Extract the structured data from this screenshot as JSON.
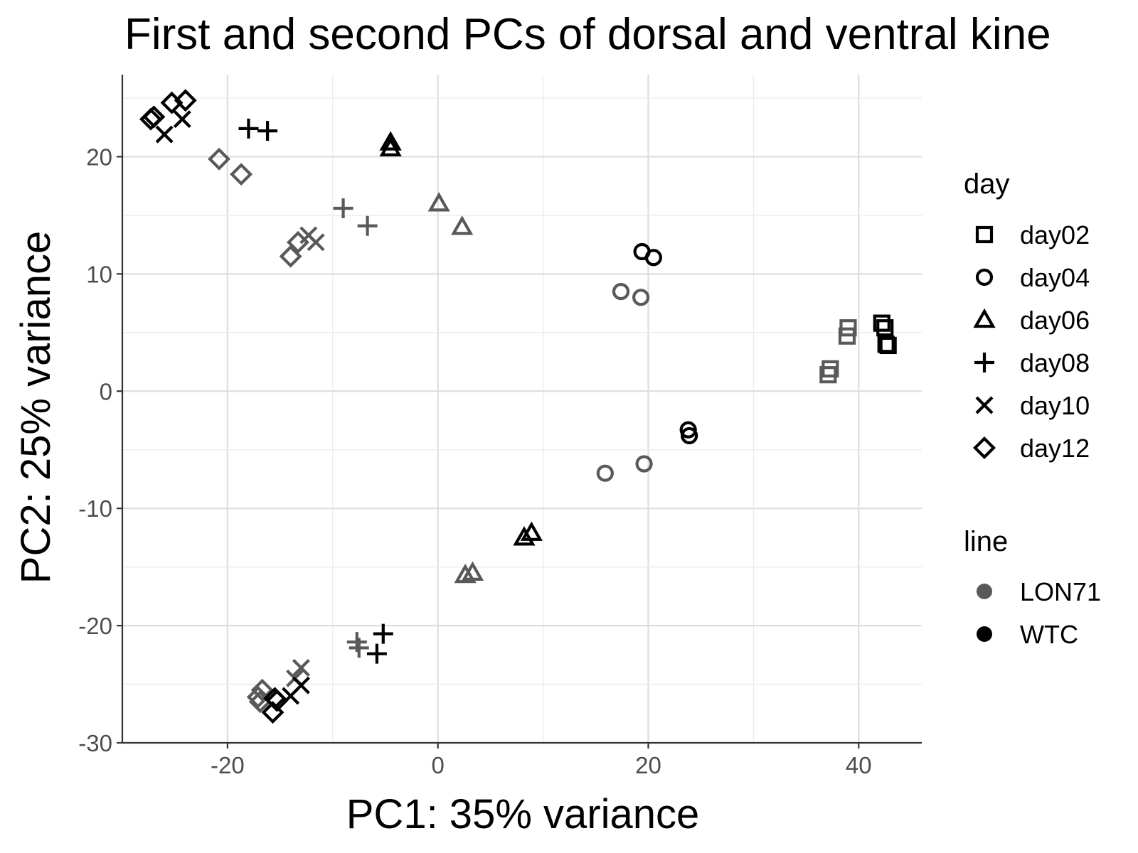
{
  "chart_data": {
    "type": "scatter",
    "title": "First and second PCs of dorsal and ventral kine",
    "xlabel": "PC1: 35% variance",
    "ylabel": "PC2: 25% variance",
    "xlim": [
      -30,
      46
    ],
    "ylim": [
      -30,
      27
    ],
    "x_ticks": [
      -20,
      0,
      20,
      40
    ],
    "y_ticks": [
      -30,
      -20,
      -10,
      0,
      10,
      20
    ],
    "x_tick_labels": [
      "-20",
      "0",
      "20",
      "40"
    ],
    "y_tick_labels": [
      "-30",
      "-20",
      "-10",
      "0",
      "10",
      "20"
    ],
    "grid": true,
    "legend_placement": "right",
    "legends": [
      {
        "title": "day",
        "items": [
          {
            "label": "day02",
            "shape": "square"
          },
          {
            "label": "day04",
            "shape": "circle"
          },
          {
            "label": "day06",
            "shape": "triangle"
          },
          {
            "label": "day08",
            "shape": "plus"
          },
          {
            "label": "day10",
            "shape": "cross"
          },
          {
            "label": "day12",
            "shape": "diamond"
          }
        ]
      },
      {
        "title": "line",
        "items": [
          {
            "label": "LON71",
            "color": "#595959"
          },
          {
            "label": "WTC",
            "color": "#000000"
          }
        ]
      }
    ],
    "colors": {
      "LON71": "#595959",
      "WTC": "#000000"
    },
    "points": [
      {
        "x": 37.1,
        "y": 1.4,
        "day": "day02",
        "line": "LON71"
      },
      {
        "x": 37.3,
        "y": 1.9,
        "day": "day02",
        "line": "LON71"
      },
      {
        "x": 38.9,
        "y": 4.7,
        "day": "day02",
        "line": "LON71"
      },
      {
        "x": 39.0,
        "y": 5.4,
        "day": "day02",
        "line": "LON71"
      },
      {
        "x": 42.2,
        "y": 5.8,
        "day": "day02",
        "line": "WTC"
      },
      {
        "x": 42.5,
        "y": 5.4,
        "day": "day02",
        "line": "WTC"
      },
      {
        "x": 42.6,
        "y": 4.0,
        "day": "day02",
        "line": "WTC"
      },
      {
        "x": 42.8,
        "y": 3.9,
        "day": "day02",
        "line": "WTC"
      },
      {
        "x": 17.4,
        "y": 8.5,
        "day": "day04",
        "line": "LON71"
      },
      {
        "x": 19.3,
        "y": 8.0,
        "day": "day04",
        "line": "LON71"
      },
      {
        "x": 15.9,
        "y": -7.0,
        "day": "day04",
        "line": "LON71"
      },
      {
        "x": 19.6,
        "y": -6.2,
        "day": "day04",
        "line": "LON71"
      },
      {
        "x": 19.4,
        "y": 11.9,
        "day": "day04",
        "line": "WTC"
      },
      {
        "x": 20.5,
        "y": 11.4,
        "day": "day04",
        "line": "WTC"
      },
      {
        "x": 23.8,
        "y": -3.3,
        "day": "day04",
        "line": "WTC"
      },
      {
        "x": 23.9,
        "y": -3.8,
        "day": "day04",
        "line": "WTC"
      },
      {
        "x": 0.1,
        "y": 16.0,
        "day": "day06",
        "line": "LON71"
      },
      {
        "x": 2.3,
        "y": 14.0,
        "day": "day06",
        "line": "LON71"
      },
      {
        "x": 2.6,
        "y": -15.7,
        "day": "day06",
        "line": "LON71"
      },
      {
        "x": 3.3,
        "y": -15.5,
        "day": "day06",
        "line": "LON71"
      },
      {
        "x": -4.5,
        "y": 21.2,
        "day": "day06",
        "line": "WTC"
      },
      {
        "x": -4.5,
        "y": 20.7,
        "day": "day06",
        "line": "WTC"
      },
      {
        "x": 8.2,
        "y": -12.5,
        "day": "day06",
        "line": "WTC"
      },
      {
        "x": 8.9,
        "y": -12.1,
        "day": "day06",
        "line": "WTC"
      },
      {
        "x": -9.0,
        "y": 15.6,
        "day": "day08",
        "line": "LON71"
      },
      {
        "x": -6.7,
        "y": 14.1,
        "day": "day08",
        "line": "LON71"
      },
      {
        "x": -7.7,
        "y": -21.4,
        "day": "day08",
        "line": "LON71"
      },
      {
        "x": -7.5,
        "y": -21.9,
        "day": "day08",
        "line": "LON71"
      },
      {
        "x": -18.0,
        "y": 22.4,
        "day": "day08",
        "line": "WTC"
      },
      {
        "x": -16.2,
        "y": 22.2,
        "day": "day08",
        "line": "WTC"
      },
      {
        "x": -5.2,
        "y": -20.7,
        "day": "day08",
        "line": "WTC"
      },
      {
        "x": -5.8,
        "y": -22.4,
        "day": "day08",
        "line": "WTC"
      },
      {
        "x": -12.3,
        "y": 13.3,
        "day": "day10",
        "line": "LON71"
      },
      {
        "x": -11.6,
        "y": 12.7,
        "day": "day10",
        "line": "LON71"
      },
      {
        "x": -13.0,
        "y": -23.6,
        "day": "day10",
        "line": "LON71"
      },
      {
        "x": -13.6,
        "y": -24.5,
        "day": "day10",
        "line": "LON71"
      },
      {
        "x": -26.0,
        "y": 21.9,
        "day": "day10",
        "line": "WTC"
      },
      {
        "x": -24.3,
        "y": 23.2,
        "day": "day10",
        "line": "WTC"
      },
      {
        "x": -14.0,
        "y": -26.0,
        "day": "day10",
        "line": "WTC"
      },
      {
        "x": -13.0,
        "y": -25.1,
        "day": "day10",
        "line": "WTC"
      },
      {
        "x": -20.8,
        "y": 19.8,
        "day": "day12",
        "line": "LON71"
      },
      {
        "x": -18.7,
        "y": 18.5,
        "day": "day12",
        "line": "LON71"
      },
      {
        "x": -13.3,
        "y": 12.7,
        "day": "day12",
        "line": "LON71"
      },
      {
        "x": -14.0,
        "y": 11.5,
        "day": "day12",
        "line": "LON71"
      },
      {
        "x": -16.7,
        "y": -25.5,
        "day": "day12",
        "line": "LON71"
      },
      {
        "x": -17.1,
        "y": -26.1,
        "day": "day12",
        "line": "LON71"
      },
      {
        "x": -16.9,
        "y": -26.5,
        "day": "day12",
        "line": "LON71"
      },
      {
        "x": -27.3,
        "y": 23.2,
        "day": "day12",
        "line": "WTC"
      },
      {
        "x": -27.0,
        "y": 23.4,
        "day": "day12",
        "line": "WTC"
      },
      {
        "x": -25.3,
        "y": 24.6,
        "day": "day12",
        "line": "WTC"
      },
      {
        "x": -24.0,
        "y": 24.8,
        "day": "day12",
        "line": "WTC"
      },
      {
        "x": -15.5,
        "y": -26.2,
        "day": "day12",
        "line": "WTC"
      },
      {
        "x": -15.3,
        "y": -26.4,
        "day": "day12",
        "line": "WTC"
      },
      {
        "x": -15.7,
        "y": -27.4,
        "day": "day12",
        "line": "WTC"
      }
    ]
  }
}
